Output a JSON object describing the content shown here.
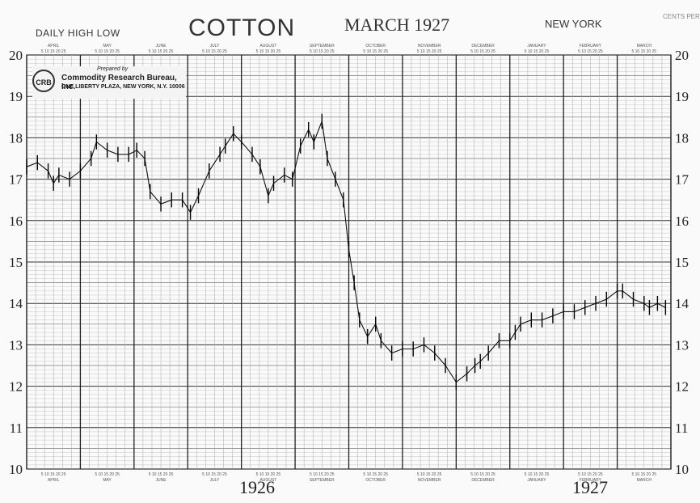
{
  "header": {
    "subtitle": "DAILY HIGH LOW",
    "title": "COTTON",
    "date": "MARCH 1927",
    "city": "NEW YORK",
    "unit": "CENTS PER POUND"
  },
  "publisher": {
    "prepared_by": "Prepared by",
    "name": "Commodity Research Bureau, Inc.",
    "address": "ONE LIBERTY PLAZA, NEW YORK, N.Y. 10006"
  },
  "footer": {
    "year_1926": "1926",
    "year_1927": "1927"
  },
  "chart_data": {
    "type": "line",
    "title": "COTTON",
    "subtitle": "DAILY HIGH LOW",
    "ylabel": "CENTS PER POUND",
    "ylim": [
      10,
      20
    ],
    "yticks": [
      10,
      11,
      12,
      13,
      14,
      15,
      16,
      17,
      18,
      19,
      20
    ],
    "xlim": [
      0,
      12
    ],
    "months": [
      "APRIL",
      "MAY",
      "JUNE",
      "JULY",
      "AUGUST",
      "SEPTEMBER",
      "OCTOBER",
      "NOVEMBER",
      "DECEMBER",
      "JANUARY",
      "FEBRUARY",
      "MARCH"
    ],
    "day_ticks": "5 10 15 20 25",
    "grid": true,
    "series": [
      {
        "x": [
          0.0,
          0.2,
          0.4,
          0.5,
          0.6,
          0.8,
          1.0,
          1.2,
          1.3,
          1.5,
          1.7,
          1.9,
          2.05,
          2.2,
          2.3,
          2.5,
          2.7,
          2.9,
          3.05,
          3.2,
          3.4,
          3.6,
          3.7,
          3.85,
          4.0,
          4.2,
          4.35,
          4.5,
          4.6,
          4.8,
          4.95,
          5.1,
          5.25,
          5.35,
          5.5,
          5.6,
          5.75,
          5.9,
          6.0,
          6.1,
          6.2,
          6.35,
          6.5,
          6.6,
          6.8,
          7.0,
          7.2,
          7.4,
          7.6,
          7.8,
          8.0,
          8.2,
          8.35,
          8.45,
          8.6,
          8.8,
          9.0,
          9.1,
          9.2,
          9.4,
          9.6,
          9.8,
          10.0,
          10.2,
          10.4,
          10.6,
          10.8,
          11.0,
          11.1,
          11.3,
          11.5,
          11.6,
          11.75,
          11.9
        ],
        "y": [
          17.3,
          17.4,
          17.2,
          16.9,
          17.1,
          17.0,
          17.2,
          17.5,
          17.9,
          17.7,
          17.6,
          17.6,
          17.7,
          17.5,
          16.7,
          16.4,
          16.5,
          16.5,
          16.2,
          16.6,
          17.2,
          17.6,
          17.8,
          18.1,
          17.9,
          17.6,
          17.3,
          16.6,
          16.9,
          17.1,
          17.0,
          17.8,
          18.2,
          17.9,
          18.4,
          17.5,
          17.0,
          16.5,
          15.3,
          14.5,
          13.6,
          13.2,
          13.5,
          13.1,
          12.8,
          12.9,
          12.9,
          13.0,
          12.8,
          12.5,
          12.1,
          12.3,
          12.5,
          12.6,
          12.8,
          13.1,
          13.1,
          13.3,
          13.5,
          13.6,
          13.6,
          13.7,
          13.8,
          13.8,
          13.9,
          14.0,
          14.1,
          14.3,
          14.3,
          14.1,
          14.0,
          13.9,
          14.0,
          13.9
        ]
      }
    ],
    "annotations": [
      "1926",
      "1927"
    ]
  }
}
